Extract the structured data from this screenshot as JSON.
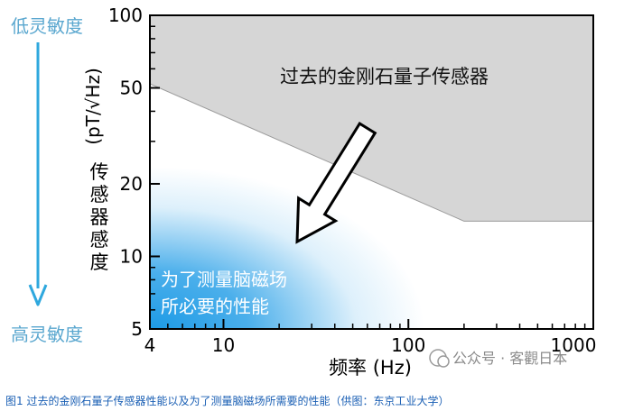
{
  "caption": "图1 过去的金刚石量子传感器性能以及为了测量脑磁场所需要的性能（供图：东京工业大学）",
  "watermark": "公众号 · 客觀日本",
  "side_labels": {
    "top": "低灵敏度",
    "bottom": "高灵敏度"
  },
  "colors": {
    "past_region": "#d6d6d6",
    "past_border": "#9a9a9a",
    "needed_region": "#1e9be6",
    "side_arrow": "#2fa8de",
    "side_text": "#5aa7cf",
    "axis": "#000000",
    "region_label": "#ffffff"
  },
  "chart_data": {
    "type": "area",
    "xlabel": "频率 (Hz)",
    "ylabel_main": "传感器感度",
    "ylabel_unit": "(pT/√Hz)",
    "xscale": "log",
    "yscale": "log",
    "xlim": [
      4,
      1000
    ],
    "ylim": [
      5,
      100
    ],
    "x_ticks": [
      {
        "value": 4,
        "label": "4"
      },
      {
        "value": 10,
        "label": "10"
      },
      {
        "value": 100,
        "label": "100"
      },
      {
        "value": 1000,
        "label": "1000"
      }
    ],
    "y_ticks": [
      {
        "value": 5,
        "label": "5"
      },
      {
        "value": 10,
        "label": "10"
      },
      {
        "value": 20,
        "label": "20"
      },
      {
        "value": 50,
        "label": "50"
      },
      {
        "value": 100,
        "label": "100"
      }
    ],
    "past_boundary": [
      [
        4,
        52
      ],
      [
        200,
        14
      ],
      [
        1000,
        14
      ]
    ],
    "needed_region_center": [
      4,
      5
    ],
    "regions": {
      "past": "过去的金刚石量子传感器",
      "needed_line1": "为了测量脑磁场",
      "needed_line2": "所必要的性能"
    },
    "arrow_from": [
      60,
      34
    ],
    "arrow_to": [
      25,
      11.5
    ],
    "grid": false
  }
}
